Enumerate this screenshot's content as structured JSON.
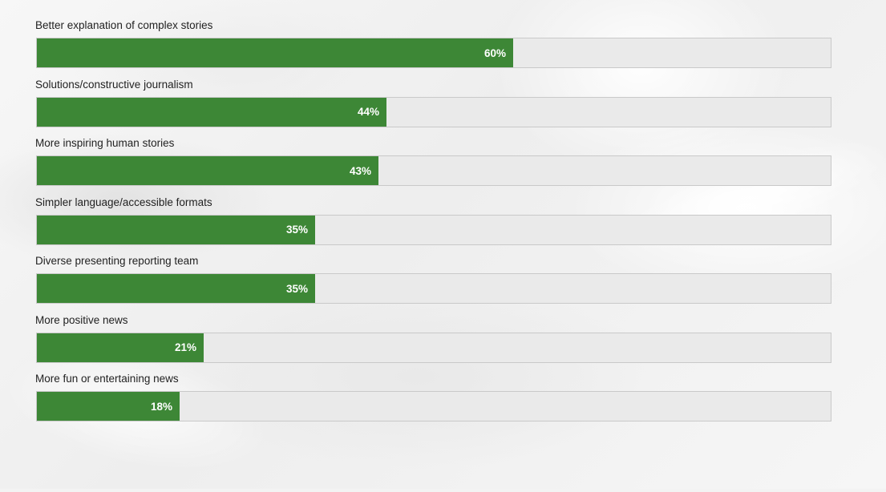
{
  "chart_data": {
    "type": "bar",
    "orientation": "horizontal",
    "title": "",
    "xlabel": "",
    "ylabel": "",
    "xlim": [
      0,
      100
    ],
    "grid": false,
    "legend": "none",
    "colors": {
      "bar": "#3d8736",
      "track": "#eaeaea",
      "label_text": "#222222",
      "value_text": "#ffffff"
    },
    "categories": [
      "Better explanation of complex stories",
      "Solutions/constructive journalism",
      "More inspiring human stories",
      "Simpler language/accessible formats",
      "Diverse presenting reporting team",
      "More positive news",
      "More fun or entertaining news"
    ],
    "values": [
      60,
      44,
      43,
      35,
      35,
      21,
      18
    ],
    "value_labels": [
      "60%",
      "44%",
      "43%",
      "35%",
      "35%",
      "21%",
      "18%"
    ]
  }
}
